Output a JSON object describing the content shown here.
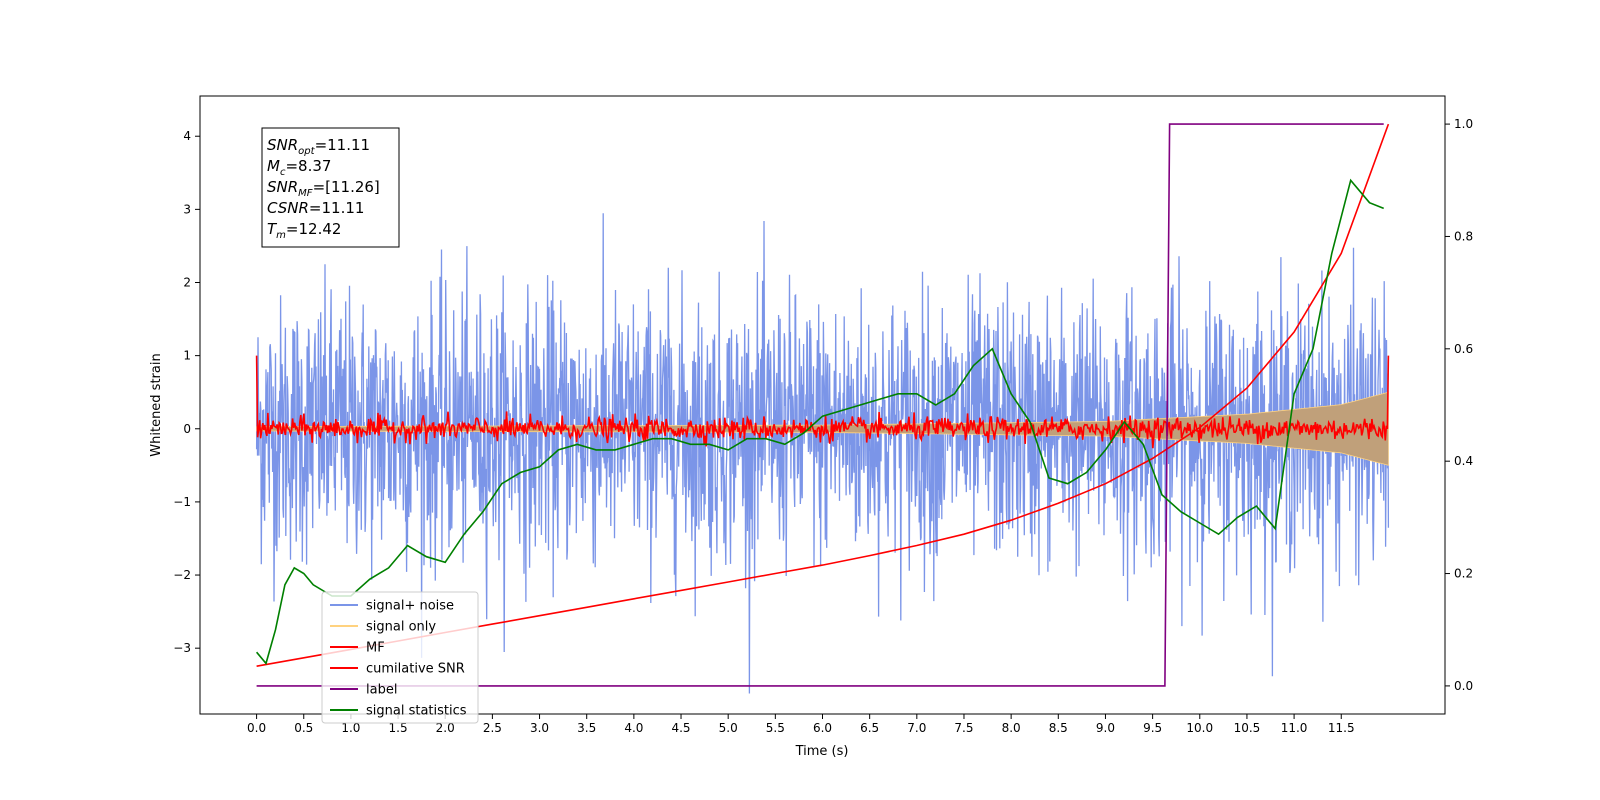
{
  "chart_data": {
    "type": "line",
    "xlabel": "Time (s)",
    "ylabel": "Whitened strain",
    "ylabel_right": "",
    "xlim": [
      -0.6,
      12.6
    ],
    "ylim": [
      -3.9,
      4.55
    ],
    "ylim_right": [
      -0.05,
      1.05
    ],
    "x_ticks": [
      "0.0",
      "0.5",
      "1.0",
      "1.5",
      "2.0",
      "2.5",
      "3.0",
      "3.5",
      "4.0",
      "4.5",
      "5.0",
      "5.5",
      "6.0",
      "6.5",
      "7.0",
      "7.5",
      "8.0",
      "8.5",
      "9.0",
      "9.5",
      "10.0",
      "10.5",
      "11.0",
      "11.5"
    ],
    "y_ticks": [
      "−3",
      "−2",
      "−1",
      "0",
      "1",
      "2",
      "3",
      "4"
    ],
    "y_ticks_right": [
      "0.0",
      "0.2",
      "0.4",
      "0.6",
      "0.8",
      "1.0"
    ],
    "grid": false,
    "legend_position": "lower-left",
    "annotation": {
      "lines": [
        {
          "sym": "SNR",
          "sub": "opt",
          "val": "=11.11"
        },
        {
          "sym": "M",
          "sub": "c",
          "val": "=8.37"
        },
        {
          "sym": "SNR",
          "sub": "MF",
          "val": "=[11.26]"
        },
        {
          "sym": "CSNR",
          "sub": "",
          "val": "=11.11"
        },
        {
          "sym": "T",
          "sub": "m",
          "val": "=12.42"
        }
      ]
    },
    "series": [
      {
        "name": "signal+ noise",
        "color": "#7b95e8",
        "axis": "left",
        "style": "noise",
        "x_range": [
          0.0,
          12.0
        ],
        "std": 0.9
      },
      {
        "name": "signal only",
        "color": "#ffd27f",
        "axis": "left",
        "style": "envelope",
        "x_range": [
          0.0,
          12.0
        ],
        "amplitude": {
          "x": [
            0.0,
            6.0,
            9.0,
            10.5,
            11.5,
            12.0
          ],
          "y": [
            0.03,
            0.05,
            0.1,
            0.2,
            0.33,
            0.5
          ]
        }
      },
      {
        "name": "MF",
        "color": "#ff0000",
        "axis": "left",
        "style": "oscillation",
        "x_range": [
          0.0,
          12.0
        ],
        "std": 0.08
      },
      {
        "name": "cumilative SNR",
        "color": "#ff0000",
        "axis": "right",
        "x": [
          0.0,
          0.5,
          1.0,
          1.5,
          2.0,
          2.5,
          3.0,
          3.5,
          4.0,
          4.5,
          5.0,
          5.5,
          6.0,
          6.5,
          7.0,
          7.5,
          8.0,
          8.5,
          9.0,
          9.5,
          10.0,
          10.5,
          11.0,
          11.5,
          12.0
        ],
        "y": [
          0.035,
          0.05,
          0.065,
          0.08,
          0.095,
          0.11,
          0.125,
          0.14,
          0.155,
          0.17,
          0.185,
          0.2,
          0.215,
          0.232,
          0.25,
          0.27,
          0.295,
          0.325,
          0.36,
          0.405,
          0.46,
          0.53,
          0.63,
          0.77,
          1.0
        ]
      },
      {
        "name": "label",
        "color": "#800080",
        "axis": "right",
        "x": [
          0.0,
          9.63,
          9.68,
          11.95
        ],
        "y": [
          0.0,
          0.0,
          1.0,
          1.0
        ]
      },
      {
        "name": "signal statistics",
        "color": "#008000",
        "axis": "right",
        "x": [
          0.0,
          0.1,
          0.2,
          0.3,
          0.4,
          0.5,
          0.6,
          0.8,
          1.0,
          1.2,
          1.4,
          1.6,
          1.8,
          2.0,
          2.2,
          2.4,
          2.6,
          2.8,
          3.0,
          3.2,
          3.4,
          3.6,
          3.8,
          4.0,
          4.2,
          4.4,
          4.6,
          4.8,
          5.0,
          5.2,
          5.4,
          5.6,
          5.8,
          6.0,
          6.2,
          6.4,
          6.6,
          6.8,
          7.0,
          7.2,
          7.4,
          7.6,
          7.8,
          8.0,
          8.2,
          8.4,
          8.6,
          8.8,
          9.0,
          9.2,
          9.4,
          9.6,
          9.8,
          10.0,
          10.2,
          10.4,
          10.6,
          10.8,
          11.0,
          11.2,
          11.4,
          11.6,
          11.8,
          11.95
        ],
        "y": [
          0.06,
          0.04,
          0.1,
          0.18,
          0.21,
          0.2,
          0.18,
          0.16,
          0.16,
          0.19,
          0.21,
          0.25,
          0.23,
          0.22,
          0.27,
          0.31,
          0.36,
          0.38,
          0.39,
          0.42,
          0.43,
          0.42,
          0.42,
          0.43,
          0.44,
          0.44,
          0.43,
          0.43,
          0.42,
          0.44,
          0.44,
          0.43,
          0.45,
          0.48,
          0.49,
          0.5,
          0.51,
          0.52,
          0.52,
          0.5,
          0.52,
          0.57,
          0.6,
          0.52,
          0.47,
          0.37,
          0.36,
          0.38,
          0.42,
          0.47,
          0.43,
          0.34,
          0.31,
          0.29,
          0.27,
          0.3,
          0.32,
          0.28,
          0.52,
          0.6,
          0.77,
          0.9,
          0.86,
          0.85
        ]
      }
    ]
  }
}
